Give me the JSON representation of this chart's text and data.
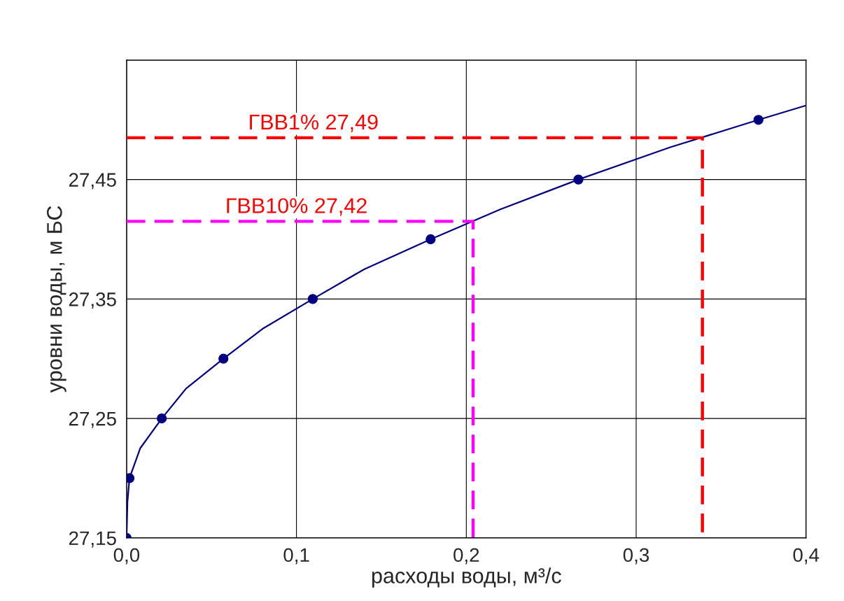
{
  "chart_data": {
    "type": "line",
    "xlabel": "расходы воды, м³/с",
    "ylabel": "уровни воды, м БС",
    "xlim": [
      0,
      0.4
    ],
    "ylim": [
      27.15,
      27.55
    ],
    "xticks": [
      {
        "value": 0,
        "label": "0,0"
      },
      {
        "value": 0.1,
        "label": "0,1"
      },
      {
        "value": 0.2,
        "label": "0,2"
      },
      {
        "value": 0.3,
        "label": "0,3"
      },
      {
        "value": 0.4,
        "label": "0,4"
      }
    ],
    "yticks": [
      {
        "value": 27.15,
        "label": "27,15"
      },
      {
        "value": 27.25,
        "label": "27,25"
      },
      {
        "value": 27.35,
        "label": "27,35"
      },
      {
        "value": 27.45,
        "label": "27,45"
      },
      {
        "value": 27.55,
        "label": null
      }
    ],
    "grid": true,
    "legend": false,
    "series": [
      {
        "color": "#000080",
        "line_style": "solid",
        "marker": "none",
        "x": [
          0,
          0.0005,
          0.0017,
          0.008,
          0.0207,
          0.035,
          0.057,
          0.08,
          0.1096,
          0.14,
          0.179,
          0.22,
          0.266,
          0.32,
          0.372,
          0.4
        ],
        "values": [
          27.15,
          27.18,
          27.2,
          27.225,
          27.25,
          27.275,
          27.3,
          27.325,
          27.35,
          27.375,
          27.4,
          27.425,
          27.45,
          27.477,
          27.5,
          27.512
        ]
      },
      {
        "type": "scatter",
        "color": "#000080",
        "marker": "circle",
        "x": [
          0,
          0.0017,
          0.0207,
          0.057,
          0.1096,
          0.179,
          0.266,
          0.372
        ],
        "values": [
          27.15,
          27.2,
          27.25,
          27.3,
          27.35,
          27.4,
          27.45,
          27.5
        ]
      },
      {
        "color": "#ff0000",
        "line_style": "dashed",
        "marker": "none",
        "x": [
          0,
          0.339,
          0.339
        ],
        "values": [
          27.485,
          27.485,
          27.15
        ]
      },
      {
        "color": "#ff00ff",
        "line_style": "dashed",
        "marker": "none",
        "x": [
          0,
          0.204,
          0.204
        ],
        "values": [
          27.415,
          27.415,
          27.15
        ]
      }
    ],
    "annotations": [
      {
        "text": "ГВВ1% 27,49",
        "x": 0.11,
        "y": 27.485
      },
      {
        "text": "ГВВ10% 27,42",
        "x": 0.1,
        "y": 27.415
      }
    ]
  }
}
